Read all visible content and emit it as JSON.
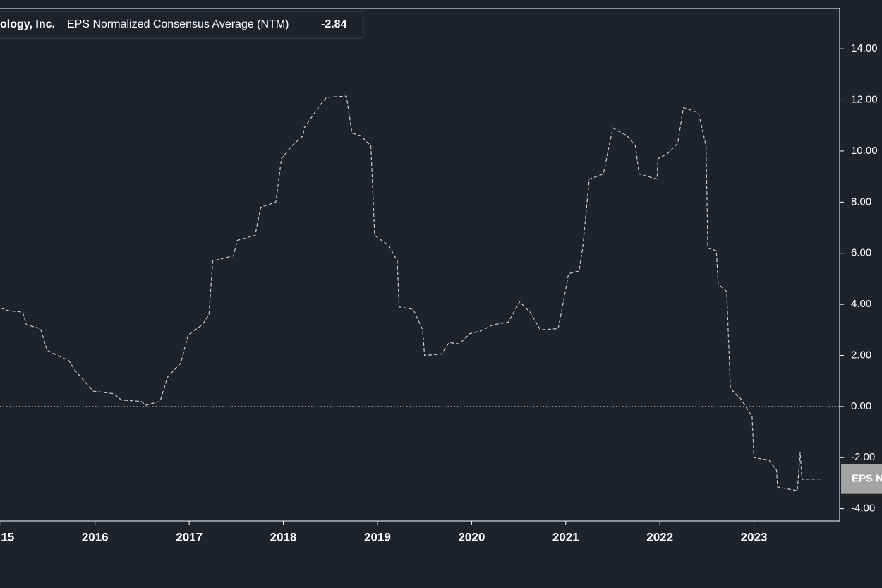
{
  "chart_data": {
    "type": "line",
    "legend_prefix": "ology, Inc.",
    "legend_value": -2.84,
    "badge": "EPS N",
    "series": [
      {
        "name": "EPS Normalized Consensus Average (NTM)",
        "color": "#c9c9c9",
        "x": [
          2015.0,
          2015.08,
          2015.23,
          2015.27,
          2015.42,
          2015.49,
          2015.6,
          2015.72,
          2015.79,
          2015.98,
          2016.2,
          2016.28,
          2016.49,
          2016.54,
          2016.69,
          2016.77,
          2016.91,
          2016.99,
          2017.14,
          2017.21,
          2017.25,
          2017.47,
          2017.51,
          2017.7,
          2017.76,
          2017.92,
          2017.98,
          2018.09,
          2018.21,
          2018.22,
          2018.39,
          2018.46,
          2018.67,
          2018.73,
          2018.82,
          2018.93,
          2018.97,
          2019.12,
          2019.21,
          2019.23,
          2019.38,
          2019.48,
          2019.5,
          2019.68,
          2019.76,
          2019.87,
          2019.98,
          2020.09,
          2020.23,
          2020.39,
          2020.51,
          2020.62,
          2020.73,
          2020.92,
          2020.96,
          2021.03,
          2021.14,
          2021.18,
          2021.25,
          2021.4,
          2021.5,
          2021.65,
          2021.74,
          2021.78,
          2021.97,
          2021.98,
          2022.08,
          2022.19,
          2022.25,
          2022.41,
          2022.49,
          2022.51,
          2022.6,
          2022.62,
          2022.71,
          2022.75,
          2022.86,
          2022.98,
          2023.0,
          2023.16,
          2023.24,
          2023.25,
          2023.46,
          2023.49,
          2023.51,
          2023.72
        ],
        "values": [
          3.85,
          3.75,
          3.7,
          3.2,
          3.05,
          2.2,
          2.0,
          1.8,
          1.4,
          0.6,
          0.5,
          0.25,
          0.2,
          0.05,
          0.2,
          1.15,
          1.7,
          2.8,
          3.2,
          3.6,
          5.7,
          5.9,
          6.5,
          6.7,
          7.8,
          8.0,
          9.7,
          10.2,
          10.6,
          10.9,
          11.8,
          12.1,
          12.15,
          10.7,
          10.6,
          10.2,
          6.7,
          6.3,
          5.7,
          3.9,
          3.8,
          3.0,
          2.0,
          2.05,
          2.5,
          2.45,
          2.85,
          2.95,
          3.2,
          3.3,
          4.1,
          3.7,
          3.0,
          3.05,
          3.8,
          5.2,
          5.3,
          6.2,
          8.9,
          9.1,
          10.9,
          10.6,
          10.2,
          9.1,
          8.9,
          9.7,
          9.9,
          10.3,
          11.7,
          11.5,
          10.2,
          6.2,
          6.1,
          4.8,
          4.5,
          0.7,
          0.3,
          -0.4,
          -2.0,
          -2.1,
          -2.5,
          -3.15,
          -3.3,
          -1.8,
          -2.85,
          -2.84
        ]
      }
    ],
    "xlim": [
      2014.99,
      2023.91
    ],
    "xticks": [
      {
        "value": 2015,
        "label": "15"
      },
      2016,
      2017,
      2018,
      2019,
      2020,
      2021,
      2022,
      2023
    ],
    "ylim": [
      -4.48,
      15.58
    ],
    "yticks": [
      {
        "value": 14,
        "label": "14.00"
      },
      {
        "value": 12,
        "label": "12.00"
      },
      {
        "value": 10,
        "label": "10.00"
      },
      {
        "value": 8,
        "label": "8.00"
      },
      {
        "value": 6,
        "label": "6.00"
      },
      {
        "value": 4,
        "label": "4.00"
      },
      {
        "value": 2,
        "label": "2.00"
      },
      {
        "value": 0,
        "label": "0.00"
      },
      {
        "value": -2,
        "label": "-2.00"
      },
      {
        "value": -4,
        "label": "-4.00"
      }
    ],
    "zero_line": true,
    "dashed": true
  }
}
